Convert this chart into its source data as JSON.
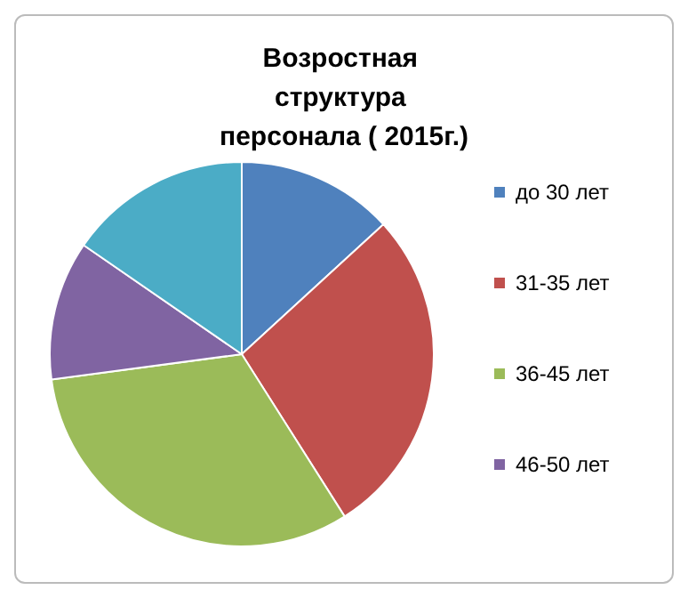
{
  "chart_data": {
    "type": "pie",
    "title": "Возростная структура персонала ( 2015г.)",
    "categories": [
      "до 30 лет",
      "31-35 лет",
      "36-45 лет",
      "46-50 лет",
      null
    ],
    "values": [
      13.2,
      27.8,
      31.9,
      11.7,
      15.4
    ],
    "colors": [
      "#4f81bd",
      "#c0504d",
      "#9bbb59",
      "#8064a2",
      "#4bacc6"
    ],
    "legend": "right"
  }
}
